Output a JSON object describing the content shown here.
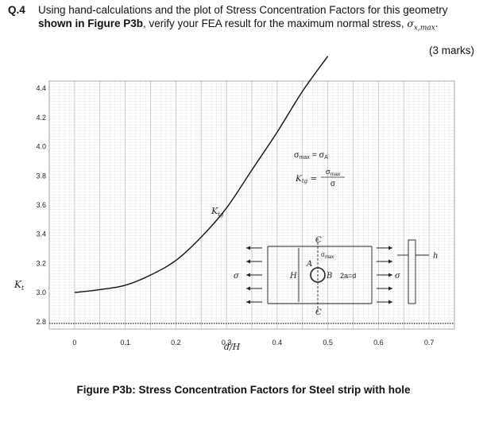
{
  "question": {
    "number": "Q.4",
    "text_a": "Using hand-calculations and the plot of Stress Concentration Factors for this geometry ",
    "text_bold": "shown in Figure P3b",
    "text_b": ", verify your FEA result for the maximum normal stress, ",
    "symbol": "σx,max",
    "end": ".",
    "marks": "(3 marks)"
  },
  "caption": "Figure P3b: Stress Concentration Factors for Steel strip with hole",
  "chart_data": {
    "type": "line",
    "x": [
      0.0,
      0.05,
      0.1,
      0.15,
      0.2,
      0.25,
      0.3,
      0.35,
      0.4,
      0.45,
      0.5
    ],
    "series": [
      {
        "name": "Ktg",
        "values": [
          3.0,
          3.02,
          3.05,
          3.12,
          3.22,
          3.38,
          3.58,
          3.84,
          4.1,
          4.38,
          4.62
        ]
      }
    ],
    "xlim": [
      -0.05,
      0.75
    ],
    "ylim": [
      2.75,
      4.45
    ],
    "x_ticks": [
      "0",
      "0.1",
      "0.2",
      "0.3",
      "0.4",
      "0.5",
      "0.6",
      "0.7"
    ],
    "y_ticks": [
      "4.4",
      "4.2",
      "4.0",
      "3.8",
      "3.6",
      "3.4",
      "3.2",
      "3.0",
      "2.8"
    ],
    "xlabel": "d/H",
    "ylabel": "Kt",
    "curve_label": "Ktg",
    "grid": true,
    "annotations": {
      "eq1": "σmax = σA",
      "eq2_lhs": "Ktg =",
      "eq2_num": "σmax",
      "eq2_den": "σ",
      "diagram_labels": {
        "C": "C",
        "A": "A",
        "sigma_max": "σmax",
        "H": "H",
        "B": "B",
        "width": "2a=d",
        "sigma": "σ",
        "h": "h"
      }
    }
  }
}
